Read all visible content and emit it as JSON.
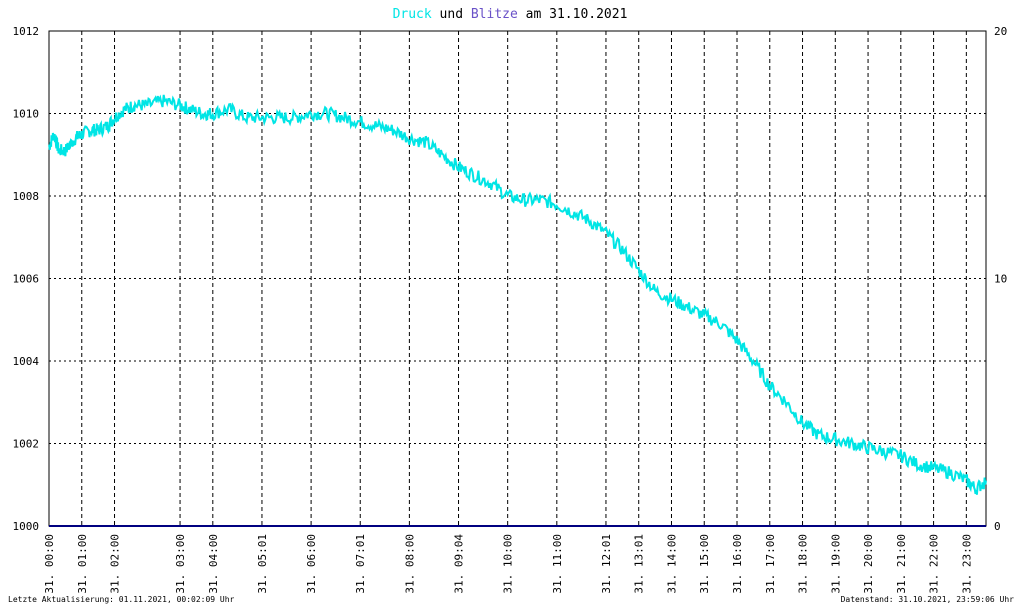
{
  "title": {
    "part1": "Druck",
    "part2": " und ",
    "part3": "Blitze",
    "part4": " am 31.10.2021",
    "color1": "#00e5e5",
    "color3": "#6a52c8"
  },
  "footer": {
    "left": "Letzte Aktualisierung: 01.11.2021, 00:02:09 Uhr",
    "right": "Datenstand: 31.10.2021, 23:59:06 Uhr"
  },
  "chart_data": {
    "type": "line",
    "x_ticks": [
      "31. 00:00",
      "31. 01:00",
      "31. 02:00",
      "31. 03:00",
      "31. 04:00",
      "31. 05:01",
      "31. 06:00",
      "31. 07:01",
      "31. 08:00",
      "31. 09:04",
      "31. 10:00",
      "31. 11:00",
      "31. 12:01",
      "31. 13:01",
      "31. 14:00",
      "31. 15:00",
      "31. 16:00",
      "31. 17:00",
      "31. 18:00",
      "31. 19:00",
      "31. 20:00",
      "31. 21:00",
      "31. 22:00",
      "31. 23:00"
    ],
    "x_tick_hours": [
      0,
      1,
      2,
      4,
      5,
      6.5,
      8,
      9.5,
      11,
      12.5,
      14,
      15.5,
      17,
      18,
      19,
      20,
      21,
      22,
      23,
      24,
      25,
      26,
      27,
      28
    ],
    "x_range_hours": [
      0,
      28.6
    ],
    "y_left_ticks": [
      "1000",
      "1002",
      "1004",
      "1006",
      "1008",
      "1010",
      "1012"
    ],
    "y_left_range": [
      1000,
      1012
    ],
    "y_right_ticks": [
      "0",
      "10",
      "20"
    ],
    "y_right_range": [
      0,
      20
    ],
    "grid": true,
    "series": [
      {
        "name": "Druck",
        "color": "#00e5e5",
        "points": [
          [
            0,
            1009.2
          ],
          [
            0.15,
            1009.5
          ],
          [
            0.3,
            1009.1
          ],
          [
            0.5,
            1009.1
          ],
          [
            0.8,
            1009.4
          ],
          [
            1.0,
            1009.5
          ],
          [
            1.3,
            1009.6
          ],
          [
            1.5,
            1009.6
          ],
          [
            1.8,
            1009.7
          ],
          [
            2.0,
            1009.9
          ],
          [
            2.3,
            1010.1
          ],
          [
            2.6,
            1010.2
          ],
          [
            3.0,
            1010.2
          ],
          [
            3.5,
            1010.3
          ],
          [
            4.0,
            1010.2
          ],
          [
            4.3,
            1010.1
          ],
          [
            4.7,
            1010.0
          ],
          [
            5.0,
            1010.0
          ],
          [
            5.5,
            1010.1
          ],
          [
            6.0,
            1009.9
          ],
          [
            6.5,
            1009.9
          ],
          [
            7.0,
            1009.9
          ],
          [
            7.5,
            1009.9
          ],
          [
            8.0,
            1010.0
          ],
          [
            8.5,
            1010.0
          ],
          [
            9.0,
            1009.9
          ],
          [
            9.5,
            1009.8
          ],
          [
            10.0,
            1009.7
          ],
          [
            10.5,
            1009.6
          ],
          [
            11.0,
            1009.4
          ],
          [
            11.5,
            1009.3
          ],
          [
            12.0,
            1009.0
          ],
          [
            12.5,
            1008.7
          ],
          [
            13.0,
            1008.5
          ],
          [
            13.5,
            1008.3
          ],
          [
            14.0,
            1008.0
          ],
          [
            14.5,
            1007.9
          ],
          [
            15.0,
            1007.9
          ],
          [
            15.5,
            1007.8
          ],
          [
            16.0,
            1007.6
          ],
          [
            16.5,
            1007.4
          ],
          [
            17.0,
            1007.1
          ],
          [
            17.5,
            1006.7
          ],
          [
            18.0,
            1006.2
          ],
          [
            18.5,
            1005.7
          ],
          [
            19.0,
            1005.5
          ],
          [
            19.5,
            1005.3
          ],
          [
            20.0,
            1005.1
          ],
          [
            20.5,
            1004.9
          ],
          [
            21.0,
            1004.5
          ],
          [
            21.5,
            1004.0
          ],
          [
            22.0,
            1003.4
          ],
          [
            22.5,
            1003.0
          ],
          [
            23.0,
            1002.5
          ],
          [
            23.5,
            1002.2
          ],
          [
            24.0,
            1002.1
          ],
          [
            24.5,
            1002.0
          ],
          [
            25.0,
            1001.9
          ],
          [
            25.5,
            1001.8
          ],
          [
            26.0,
            1001.7
          ],
          [
            26.5,
            1001.5
          ],
          [
            27.0,
            1001.4
          ],
          [
            27.5,
            1001.3
          ],
          [
            28.0,
            1001.1
          ],
          [
            28.3,
            1000.9
          ],
          [
            28.6,
            1001.1
          ]
        ]
      },
      {
        "name": "Blitze",
        "color": "#000080",
        "points": [
          [
            0,
            0
          ],
          [
            28.6,
            0
          ]
        ]
      }
    ]
  }
}
